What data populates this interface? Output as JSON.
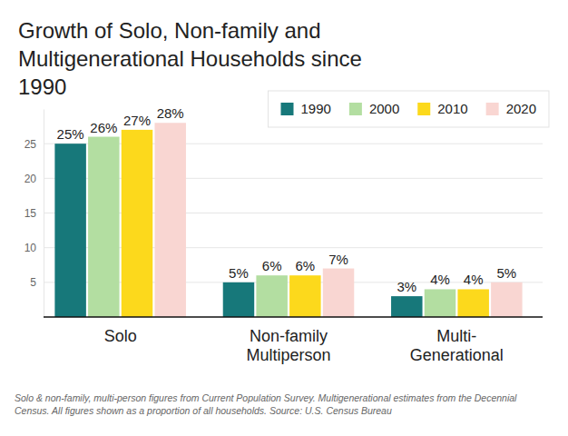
{
  "chart_data": {
    "type": "bar",
    "title": "Growth of Solo, Non-family and Multigenerational Households since 1990",
    "caption": "Solo & non-family, multi-person figures from Current Population Survey. Multigenerational estimates from the Decennial Census. All figures shown as a proportion of all households. Source: U.S. Census Bureau",
    "categories": [
      "Solo",
      "Non-family Multiperson",
      "Multi-Generational"
    ],
    "series": [
      {
        "name": "1990",
        "color": "#17787a",
        "values": [
          25,
          5,
          3
        ],
        "value_labels": [
          "25%",
          "5%",
          "3%"
        ]
      },
      {
        "name": "2000",
        "color": "#b3dea1",
        "values": [
          26,
          6,
          4
        ],
        "value_labels": [
          "26%",
          "6%",
          "4%"
        ]
      },
      {
        "name": "2010",
        "color": "#fcd91c",
        "values": [
          27,
          6,
          4
        ],
        "value_labels": [
          "27%",
          "6%",
          "4%"
        ]
      },
      {
        "name": "2020",
        "color": "#f9d6d2",
        "values": [
          28,
          7,
          5
        ],
        "value_labels": [
          "28%",
          "7%",
          "5%"
        ]
      }
    ],
    "ylim": [
      0,
      30
    ],
    "yticks": [
      5,
      10,
      15,
      20,
      25
    ],
    "grid": true,
    "legend": "top-right",
    "data_labels": true
  }
}
